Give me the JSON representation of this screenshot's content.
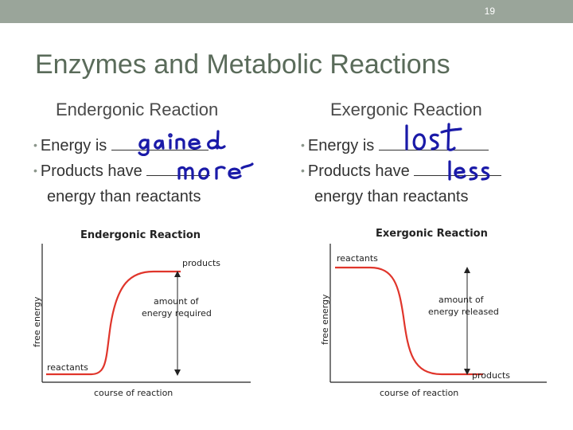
{
  "slide_number": "19",
  "title": "Enzymes and Metabolic Reactions",
  "colors": {
    "top_bar": "#9aa59a",
    "title": "#5a6b5a",
    "handwriting": "#1a1aa8",
    "curve": "#e0352b"
  },
  "left": {
    "heading": "Endergonic Reaction",
    "bullet1_prefix": "Energy is",
    "bullet1_answer": "gained",
    "bullet2_prefix": "Products have",
    "bullet2_answer": "more",
    "bullet2_cont": "energy than reactants",
    "graph": {
      "title": "Endergonic Reaction",
      "y_axis": "free energy",
      "x_axis": "course of reaction",
      "label_products": "products",
      "label_reactants": "reactants",
      "label_amount1": "amount of",
      "label_amount2": "energy required"
    }
  },
  "right": {
    "heading": "Exergonic Reaction",
    "bullet1_prefix": "Energy is",
    "bullet1_answer": "lost",
    "bullet2_prefix": "Products have",
    "bullet2_answer": "less",
    "bullet2_cont": "energy than reactants",
    "graph": {
      "title": "Exergonic Reaction",
      "y_axis": "free energy",
      "x_axis": "course of reaction",
      "label_products": "products",
      "label_reactants": "reactants",
      "label_amount1": "amount of",
      "label_amount2": "energy released"
    }
  }
}
